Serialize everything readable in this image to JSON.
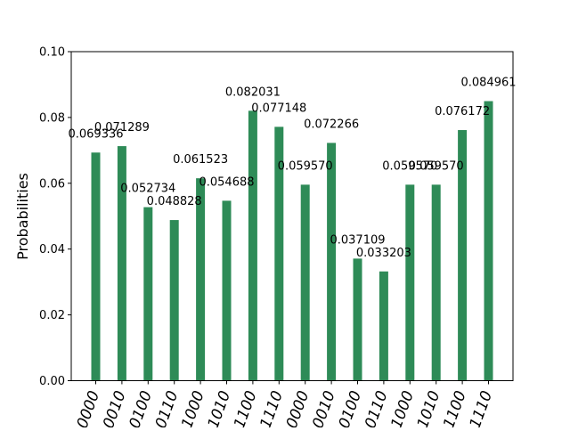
{
  "chart_data": {
    "type": "bar",
    "ylabel": "Probabilities",
    "ylim": [
      0,
      0.1
    ],
    "yticks": [
      "0.00",
      "0.02",
      "0.04",
      "0.06",
      "0.08",
      "0.10"
    ],
    "ytick_values": [
      0,
      0.02,
      0.04,
      0.06,
      0.08,
      0.1
    ],
    "categories": [
      "0000",
      "0010",
      "0100",
      "0110",
      "1000",
      "1010",
      "1100",
      "1110",
      "0000",
      "0010",
      "0100",
      "0110",
      "1000",
      "1010",
      "1100",
      "1110"
    ],
    "values": [
      0.069336,
      0.071289,
      0.052734,
      0.048828,
      0.061523,
      0.054688,
      0.082031,
      0.077148,
      0.05957,
      0.072266,
      0.037109,
      0.033203,
      0.05957,
      0.05957,
      0.076172,
      0.084961
    ],
    "value_labels": [
      "0.069336",
      "0.071289",
      "0.052734",
      "0.048828",
      "0.061523",
      "0.054688",
      "0.082031",
      "0.077148",
      "0.059570",
      "0.072266",
      "0.037109",
      "0.033203",
      "0.059570",
      "0.059570",
      "0.076172",
      "0.084961"
    ],
    "bar_color": "#2e8b57",
    "grid": false,
    "legend": "none"
  }
}
